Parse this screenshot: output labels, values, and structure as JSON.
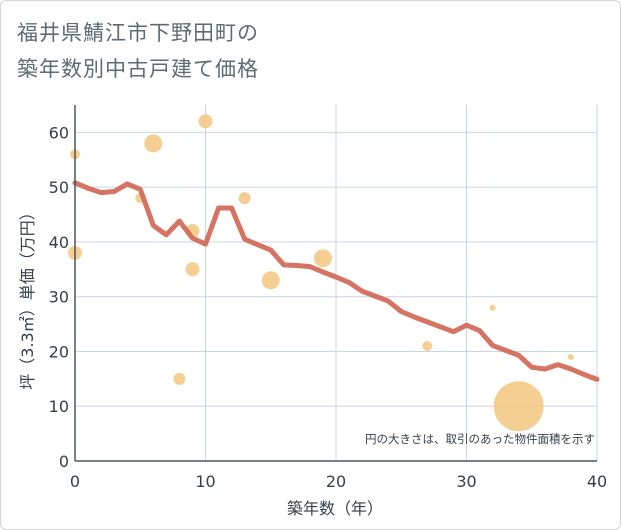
{
  "chart_data": {
    "type": "scatter+line",
    "title_lines": [
      "福井県鯖江市下野田町の",
      "築年数別中古戸建て価格"
    ],
    "xlabel": "築年数（年）",
    "ylabel": "坪（3.3㎡）単価（万円）",
    "xlim": [
      0,
      40
    ],
    "ylim": [
      0,
      65
    ],
    "xticks": [
      0,
      10,
      20,
      30,
      40
    ],
    "yticks": [
      0,
      10,
      20,
      30,
      40,
      50,
      60
    ],
    "grid": true,
    "note": "円の大きさは、取引のあった物件面積を示す",
    "colors": {
      "bubble": "#f3c57f",
      "line": "#d46b5a",
      "grid": "#c8d6e4",
      "axis": "#4a5560"
    },
    "bubbles": [
      {
        "x": 0,
        "y": 56,
        "size": 5
      },
      {
        "x": 0,
        "y": 38,
        "size": 7
      },
      {
        "x": 5,
        "y": 48,
        "size": 5
      },
      {
        "x": 6,
        "y": 58,
        "size": 9
      },
      {
        "x": 8,
        "y": 15,
        "size": 6
      },
      {
        "x": 9,
        "y": 42,
        "size": 7
      },
      {
        "x": 9,
        "y": 35,
        "size": 7
      },
      {
        "x": 10,
        "y": 62,
        "size": 7
      },
      {
        "x": 13,
        "y": 48,
        "size": 6
      },
      {
        "x": 15,
        "y": 33,
        "size": 9
      },
      {
        "x": 19,
        "y": 37,
        "size": 9
      },
      {
        "x": 27,
        "y": 21,
        "size": 5
      },
      {
        "x": 32,
        "y": 28,
        "size": 3
      },
      {
        "x": 34,
        "y": 10,
        "size": 25
      },
      {
        "x": 38,
        "y": 19,
        "size": 3
      }
    ],
    "line": {
      "x": [
        0,
        1,
        2,
        3,
        4,
        5,
        6,
        7,
        8,
        9,
        10,
        11,
        12,
        13,
        14,
        15,
        16,
        17,
        18,
        19,
        20,
        21,
        22,
        23,
        24,
        25,
        26,
        27,
        28,
        29,
        30,
        31,
        32,
        33,
        34,
        35,
        36,
        37,
        38,
        39,
        40
      ],
      "y": [
        50.8,
        49.8,
        49,
        49.2,
        50.6,
        49.6,
        43,
        41.3,
        43.8,
        40.7,
        39.6,
        46.2,
        46.2,
        40.5,
        39.5,
        38.5,
        35.8,
        35.7,
        35.5,
        34.5,
        33.6,
        32.6,
        31,
        30.1,
        29.2,
        27.3,
        26.3,
        25.4,
        24.5,
        23.6,
        24.8,
        23.8,
        21.1,
        20.2,
        19.3,
        17.1,
        16.8,
        17.6,
        16.8,
        15.8,
        14.9
      ]
    }
  }
}
